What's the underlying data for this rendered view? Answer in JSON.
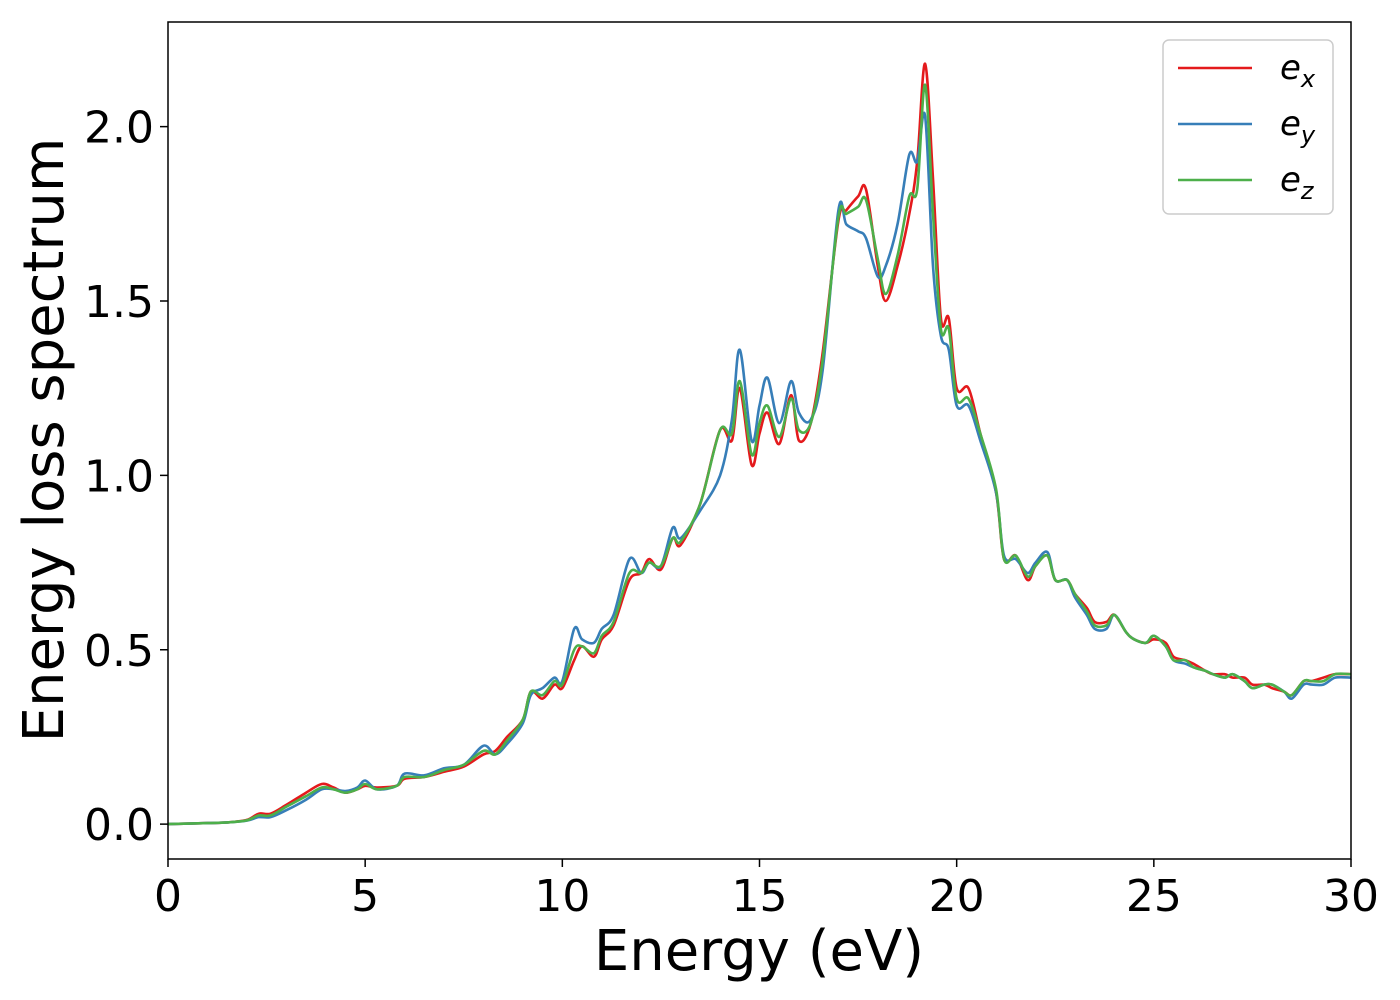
{
  "chart_data": {
    "type": "line",
    "xlabel": "Energy (eV)",
    "ylabel": "Energy loss spectrum",
    "xlim": [
      0,
      30
    ],
    "ylim": [
      -0.1,
      2.3
    ],
    "xticks": [
      0,
      5,
      10,
      15,
      20,
      25,
      30
    ],
    "xtick_labels": [
      "0",
      "5",
      "10",
      "15",
      "20",
      "25",
      "30"
    ],
    "yticks": [
      0.0,
      0.5,
      1.0,
      1.5,
      2.0
    ],
    "ytick_labels": [
      "0.0",
      "0.5",
      "1.0",
      "1.5",
      "2.0"
    ],
    "grid": false,
    "legend_position": "top-right",
    "series": [
      {
        "name": "e_x",
        "legend_main": "e",
        "legend_sub": "x",
        "color": "#e41a1c",
        "x": [
          0,
          1,
          1.5,
          2,
          2.3,
          2.6,
          3,
          3.5,
          3.9,
          4.2,
          4.5,
          4.8,
          5,
          5.3,
          5.8,
          6,
          6.5,
          7,
          7.5,
          8,
          8.3,
          8.6,
          9,
          9.2,
          9.5,
          9.8,
          10,
          10.3,
          10.5,
          10.8,
          11,
          11.3,
          11.7,
          12,
          12.2,
          12.5,
          12.8,
          13,
          13.5,
          14,
          14.3,
          14.5,
          14.8,
          15,
          15.2,
          15.5,
          15.8,
          16,
          16.3,
          16.6,
          17,
          17.2,
          17.5,
          17.7,
          18,
          18.2,
          18.5,
          18.8,
          19,
          19.2,
          19.4,
          19.6,
          19.8,
          20,
          20.3,
          20.6,
          21,
          21.2,
          21.5,
          21.8,
          22,
          22.3,
          22.5,
          22.8,
          23,
          23.3,
          23.5,
          23.8,
          24,
          24.3,
          24.5,
          24.8,
          25,
          25.3,
          25.5,
          25.8,
          26,
          26.3,
          26.5,
          26.8,
          27,
          27.3,
          27.5,
          27.8,
          28,
          28.3,
          28.5,
          28.8,
          29,
          29.3,
          29.6,
          30
        ],
        "y": [
          0,
          0.003,
          0.005,
          0.012,
          0.03,
          0.03,
          0.055,
          0.09,
          0.115,
          0.105,
          0.09,
          0.1,
          0.11,
          0.105,
          0.11,
          0.13,
          0.135,
          0.15,
          0.165,
          0.2,
          0.21,
          0.25,
          0.3,
          0.38,
          0.36,
          0.4,
          0.39,
          0.47,
          0.51,
          0.48,
          0.53,
          0.57,
          0.7,
          0.72,
          0.76,
          0.73,
          0.82,
          0.8,
          0.92,
          1.13,
          1.1,
          1.25,
          1.03,
          1.12,
          1.18,
          1.09,
          1.23,
          1.1,
          1.15,
          1.35,
          1.73,
          1.76,
          1.8,
          1.82,
          1.6,
          1.5,
          1.6,
          1.75,
          1.9,
          2.18,
          1.85,
          1.45,
          1.45,
          1.25,
          1.25,
          1.12,
          0.95,
          0.76,
          0.77,
          0.7,
          0.74,
          0.77,
          0.7,
          0.7,
          0.66,
          0.62,
          0.58,
          0.58,
          0.6,
          0.55,
          0.53,
          0.52,
          0.53,
          0.52,
          0.48,
          0.47,
          0.46,
          0.44,
          0.43,
          0.43,
          0.42,
          0.42,
          0.4,
          0.4,
          0.39,
          0.38,
          0.37,
          0.41,
          0.41,
          0.42,
          0.43,
          0.43
        ]
      },
      {
        "name": "e_y",
        "legend_main": "e",
        "legend_sub": "y",
        "color": "#377eb8",
        "x": [
          0,
          1,
          1.5,
          2,
          2.3,
          2.6,
          3,
          3.5,
          3.9,
          4.2,
          4.5,
          4.8,
          5,
          5.3,
          5.8,
          6,
          6.5,
          7,
          7.5,
          8,
          8.3,
          8.6,
          9,
          9.2,
          9.5,
          9.8,
          10,
          10.3,
          10.5,
          10.8,
          11,
          11.3,
          11.7,
          12,
          12.2,
          12.5,
          12.8,
          13,
          13.5,
          14,
          14.3,
          14.5,
          14.8,
          15,
          15.2,
          15.5,
          15.8,
          16,
          16.3,
          16.6,
          17,
          17.2,
          17.5,
          17.7,
          18,
          18.2,
          18.5,
          18.8,
          19,
          19.2,
          19.4,
          19.6,
          19.8,
          20,
          20.3,
          20.6,
          21,
          21.2,
          21.5,
          21.8,
          22,
          22.3,
          22.5,
          22.8,
          23,
          23.3,
          23.5,
          23.8,
          24,
          24.3,
          24.5,
          24.8,
          25,
          25.3,
          25.5,
          25.8,
          26,
          26.3,
          26.5,
          26.8,
          27,
          27.3,
          27.5,
          27.8,
          28,
          28.3,
          28.5,
          28.8,
          29,
          29.3,
          29.6,
          30
        ],
        "y": [
          0,
          0.003,
          0.005,
          0.01,
          0.02,
          0.02,
          0.04,
          0.07,
          0.1,
          0.1,
          0.095,
          0.105,
          0.125,
          0.1,
          0.11,
          0.145,
          0.14,
          0.16,
          0.17,
          0.225,
          0.2,
          0.23,
          0.29,
          0.37,
          0.39,
          0.42,
          0.41,
          0.56,
          0.53,
          0.52,
          0.56,
          0.6,
          0.76,
          0.72,
          0.75,
          0.74,
          0.85,
          0.82,
          0.9,
          1.0,
          1.16,
          1.36,
          1.1,
          1.2,
          1.28,
          1.15,
          1.27,
          1.18,
          1.16,
          1.3,
          1.76,
          1.72,
          1.7,
          1.68,
          1.57,
          1.6,
          1.72,
          1.92,
          1.9,
          2.03,
          1.6,
          1.4,
          1.36,
          1.2,
          1.2,
          1.1,
          0.95,
          0.77,
          0.76,
          0.72,
          0.75,
          0.78,
          0.7,
          0.7,
          0.65,
          0.6,
          0.56,
          0.56,
          0.6,
          0.55,
          0.53,
          0.52,
          0.54,
          0.51,
          0.47,
          0.46,
          0.45,
          0.44,
          0.43,
          0.42,
          0.43,
          0.41,
          0.39,
          0.4,
          0.4,
          0.38,
          0.36,
          0.4,
          0.4,
          0.4,
          0.42,
          0.42
        ]
      },
      {
        "name": "e_z",
        "legend_main": "e",
        "legend_sub": "z",
        "color": "#4daf4a",
        "x": [
          0,
          1,
          1.5,
          2,
          2.3,
          2.6,
          3,
          3.5,
          3.9,
          4.2,
          4.5,
          4.8,
          5,
          5.3,
          5.8,
          6,
          6.5,
          7,
          7.5,
          8,
          8.3,
          8.6,
          9,
          9.2,
          9.5,
          9.8,
          10,
          10.3,
          10.5,
          10.8,
          11,
          11.3,
          11.7,
          12,
          12.2,
          12.5,
          12.8,
          13,
          13.5,
          14,
          14.3,
          14.5,
          14.8,
          15,
          15.2,
          15.5,
          15.8,
          16,
          16.3,
          16.6,
          17,
          17.2,
          17.5,
          17.7,
          18,
          18.2,
          18.5,
          18.8,
          19,
          19.2,
          19.4,
          19.6,
          19.8,
          20,
          20.3,
          20.6,
          21,
          21.2,
          21.5,
          21.8,
          22,
          22.3,
          22.5,
          22.8,
          23,
          23.3,
          23.5,
          23.8,
          24,
          24.3,
          24.5,
          24.8,
          25,
          25.3,
          25.5,
          25.8,
          26,
          26.3,
          26.5,
          26.8,
          27,
          27.3,
          27.5,
          27.8,
          28,
          28.3,
          28.5,
          28.8,
          29,
          29.3,
          29.6,
          30
        ],
        "y": [
          0,
          0.003,
          0.005,
          0.011,
          0.025,
          0.025,
          0.05,
          0.08,
          0.105,
          0.1,
          0.09,
          0.1,
          0.115,
          0.1,
          0.11,
          0.135,
          0.135,
          0.155,
          0.17,
          0.21,
          0.2,
          0.24,
          0.3,
          0.38,
          0.37,
          0.41,
          0.4,
          0.5,
          0.51,
          0.49,
          0.54,
          0.58,
          0.72,
          0.72,
          0.75,
          0.74,
          0.82,
          0.81,
          0.92,
          1.13,
          1.12,
          1.27,
          1.06,
          1.15,
          1.2,
          1.11,
          1.22,
          1.13,
          1.15,
          1.33,
          1.74,
          1.75,
          1.77,
          1.79,
          1.62,
          1.52,
          1.63,
          1.8,
          1.82,
          2.12,
          1.75,
          1.42,
          1.42,
          1.22,
          1.22,
          1.12,
          0.96,
          0.76,
          0.77,
          0.71,
          0.74,
          0.77,
          0.7,
          0.7,
          0.66,
          0.61,
          0.57,
          0.57,
          0.6,
          0.55,
          0.53,
          0.52,
          0.54,
          0.51,
          0.47,
          0.47,
          0.45,
          0.44,
          0.43,
          0.42,
          0.43,
          0.41,
          0.39,
          0.4,
          0.4,
          0.38,
          0.37,
          0.41,
          0.41,
          0.41,
          0.43,
          0.43
        ]
      }
    ]
  }
}
